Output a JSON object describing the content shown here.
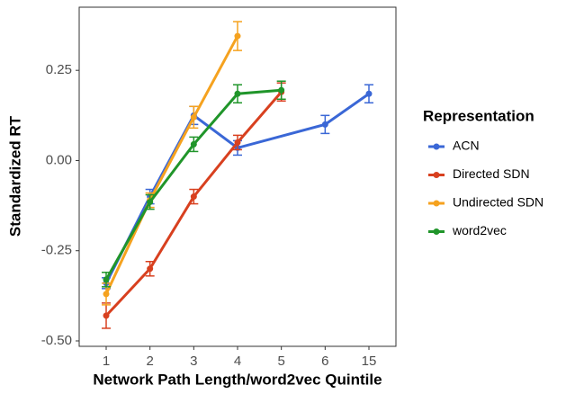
{
  "chart_data": {
    "type": "line",
    "x_label": "Network Path Length/word2vec Quintile",
    "y_label": "Standardized RT",
    "legend_title": "Representation",
    "legend_position": "right",
    "categories": [
      "1",
      "2",
      "3",
      "4",
      "5",
      "6",
      "15"
    ],
    "ylim": [
      -0.515,
      0.425
    ],
    "yticks": [
      {
        "value": 0.25,
        "label": "0.25"
      },
      {
        "value": 0,
        "label": "0.00"
      },
      {
        "value": -0.25,
        "label": "-0.25"
      },
      {
        "value": -0.5,
        "label": "-0.50"
      }
    ],
    "grid": false,
    "series": [
      {
        "name": "ACN",
        "color": "#3a67d6",
        "x": [
          "1",
          "2",
          "3",
          "4",
          "6",
          "15"
        ],
        "values": [
          -0.34,
          -0.1,
          0.125,
          0.035,
          0.1,
          0.185
        ],
        "errors": [
          0.015,
          0.02,
          0.025,
          0.02,
          0.025,
          0.025
        ]
      },
      {
        "name": "Directed SDN",
        "color": "#d8401f",
        "x": [
          "1",
          "2",
          "3",
          "4",
          "5"
        ],
        "values": [
          -0.43,
          -0.3,
          -0.1,
          0.05,
          0.19
        ],
        "errors": [
          0.035,
          0.02,
          0.02,
          0.02,
          0.025
        ]
      },
      {
        "name": "Undirected SDN",
        "color": "#f5a21f",
        "x": [
          "1",
          "2",
          "3",
          "4"
        ],
        "values": [
          -0.37,
          -0.11,
          0.12,
          0.345
        ],
        "errors": [
          0.03,
          0.02,
          0.03,
          0.04
        ]
      },
      {
        "name": "word2vec",
        "color": "#20952a",
        "x": [
          "1",
          "2",
          "3",
          "4",
          "5"
        ],
        "values": [
          -0.33,
          -0.115,
          0.045,
          0.185,
          0.195
        ],
        "errors": [
          0.02,
          0.02,
          0.02,
          0.025,
          0.025
        ]
      }
    ]
  }
}
